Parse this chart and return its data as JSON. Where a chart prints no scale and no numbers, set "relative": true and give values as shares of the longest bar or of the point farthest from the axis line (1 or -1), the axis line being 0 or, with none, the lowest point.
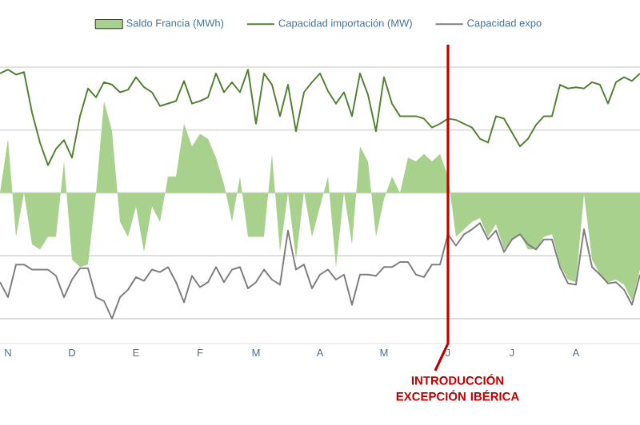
{
  "chart_data": {
    "type": "line",
    "relative": true,
    "legend": "top",
    "grid": "y",
    "categories": [
      null,
      "N",
      null,
      null,
      null,
      null,
      null,
      null,
      null,
      "D",
      null,
      null,
      null,
      null,
      null,
      null,
      null,
      "E",
      null,
      null,
      null,
      null,
      null,
      null,
      null,
      "F",
      null,
      null,
      null,
      null,
      null,
      null,
      "M",
      null,
      null,
      null,
      null,
      null,
      null,
      null,
      "A",
      null,
      null,
      null,
      null,
      null,
      null,
      null,
      "M",
      null,
      null,
      null,
      null,
      null,
      null,
      null,
      "J",
      null,
      null,
      null,
      null,
      null,
      null,
      null,
      "J",
      null,
      null,
      null,
      null,
      null,
      null,
      null,
      "A",
      null,
      null,
      null,
      null,
      null,
      null,
      null,
      null
    ],
    "series": [
      {
        "name": "Saldo Francia (MWh)",
        "type": "area",
        "color": "#a9d18e",
        "values": [
          0,
          0.43,
          -0.35,
          0,
          -0.41,
          -0.45,
          -0.35,
          -0.35,
          0.25,
          -0.53,
          -0.59,
          -0.57,
          0,
          0.73,
          0.49,
          -0.23,
          -0.35,
          -0.11,
          -0.47,
          -0.11,
          -0.23,
          0.13,
          0.13,
          0.55,
          0.37,
          0.47,
          0.43,
          0.28,
          0.07,
          -0.23,
          0.13,
          -0.35,
          -0.35,
          -0.35,
          0.31,
          -0.47,
          0,
          -0.53,
          0.01,
          -0.35,
          -0.11,
          0.13,
          -0.59,
          0,
          -0.41,
          0.37,
          0.25,
          -0.35,
          -0.05,
          0.13,
          0,
          0.28,
          0.25,
          0.31,
          0.25,
          0.31,
          0.13,
          -0.35,
          -0.29,
          -0.23,
          -0.2,
          -0.35,
          -0.25,
          -0.45,
          -0.37,
          -0.33,
          -0.45,
          -0.45,
          -0.35,
          -0.33,
          -0.57,
          -0.69,
          -0.71,
          -0.01,
          -0.53,
          -0.65,
          -0.71,
          -0.69,
          -0.73,
          -0.86,
          -0.61
        ]
      },
      {
        "name": "Capacidad importación (MW)",
        "color": "#548235",
        "values": [
          0.95,
          0.98,
          0.94,
          0.96,
          0.64,
          0.4,
          0.22,
          0.35,
          0.42,
          0.28,
          0.61,
          0.83,
          0.76,
          0.88,
          0.86,
          0.8,
          0.82,
          0.92,
          0.84,
          0.8,
          0.69,
          0.71,
          0.73,
          0.89,
          0.71,
          0.73,
          0.76,
          0.95,
          0.8,
          0.88,
          0.8,
          0.98,
          0.55,
          0.95,
          0.86,
          0.61,
          0.86,
          0.49,
          0.8,
          0.88,
          0.95,
          0.81,
          0.71,
          0.8,
          0.61,
          0.95,
          0.78,
          0.49,
          0.92,
          0.71,
          0.61,
          0.61,
          0.61,
          0.59,
          0.52,
          0.55,
          0.59,
          0.58,
          0.55,
          0.52,
          0.43,
          0.4,
          0.61,
          0.59,
          0.48,
          0.37,
          0.43,
          0.54,
          0.61,
          0.61,
          0.86,
          0.83,
          0.84,
          0.83,
          0.88,
          0.86,
          0.71,
          0.88,
          0.92,
          0.89,
          0.95
        ]
      },
      {
        "name": "Capacidad expo",
        "color": "#7f7f7f",
        "values": [
          -0.71,
          -0.83,
          -0.57,
          -0.57,
          -0.61,
          -0.61,
          -0.61,
          -0.66,
          -0.83,
          -0.69,
          -0.6,
          -0.6,
          -0.83,
          -0.86,
          -1.0,
          -0.83,
          -0.77,
          -0.67,
          -0.7,
          -0.61,
          -0.63,
          -0.59,
          -0.71,
          -0.87,
          -0.66,
          -0.75,
          -0.71,
          -0.59,
          -0.71,
          -0.61,
          -0.59,
          -0.76,
          -0.71,
          -0.61,
          -0.69,
          -0.73,
          -0.3,
          -0.61,
          -0.57,
          -0.76,
          -0.65,
          -0.61,
          -0.69,
          -0.65,
          -0.89,
          -0.65,
          -0.65,
          -0.66,
          -0.59,
          -0.59,
          -0.55,
          -0.55,
          -0.65,
          -0.67,
          -0.57,
          -0.57,
          -0.33,
          -0.42,
          -0.33,
          -0.29,
          -0.24,
          -0.37,
          -0.3,
          -0.47,
          -0.37,
          -0.33,
          -0.41,
          -0.45,
          -0.37,
          -0.37,
          -0.59,
          -0.72,
          -0.73,
          -0.29,
          -0.59,
          -0.65,
          -0.72,
          -0.71,
          -0.77,
          -0.89,
          -0.65
        ]
      }
    ],
    "ref_lines": [
      {
        "axis": "x",
        "value": "J",
        "label": "INTRODUCCIÓN EXCEPCIÓN IBÉRICA",
        "color": "#c00000"
      }
    ]
  }
}
